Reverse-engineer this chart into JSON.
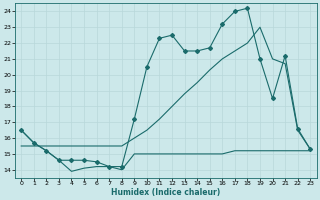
{
  "xlabel": "Humidex (Indice chaleur)",
  "bg_color": "#cce8ea",
  "line_color": "#1a6b6b",
  "grid_color": "#b8d8da",
  "xlim": [
    -0.5,
    23.5
  ],
  "ylim": [
    13.5,
    24.5
  ],
  "yticks": [
    14,
    15,
    16,
    17,
    18,
    19,
    20,
    21,
    22,
    23,
    24
  ],
  "xticks": [
    0,
    1,
    2,
    3,
    4,
    5,
    6,
    7,
    8,
    9,
    10,
    11,
    12,
    13,
    14,
    15,
    16,
    17,
    18,
    19,
    20,
    21,
    22,
    23
  ],
  "curve1_x": [
    0,
    1,
    2,
    3,
    4,
    5,
    6,
    7,
    8,
    9,
    10,
    11,
    12,
    13,
    14,
    15,
    16,
    17,
    18,
    19,
    20,
    21,
    22,
    23
  ],
  "curve1_y": [
    16.5,
    15.7,
    15.2,
    14.6,
    13.9,
    14.1,
    14.2,
    14.2,
    14.0,
    15.0,
    15.0,
    15.0,
    15.0,
    15.0,
    15.0,
    15.0,
    15.0,
    15.2,
    15.2,
    15.2,
    15.2,
    15.2,
    15.2,
    15.2
  ],
  "curve2_x": [
    0,
    1,
    2,
    3,
    4,
    5,
    6,
    7,
    8,
    9,
    10,
    11,
    12,
    13,
    14,
    15,
    16,
    17,
    18,
    19,
    20,
    21,
    22,
    23
  ],
  "curve2_y": [
    15.5,
    15.5,
    15.5,
    15.5,
    15.5,
    15.5,
    15.5,
    15.5,
    15.5,
    16.0,
    16.5,
    17.2,
    18.0,
    18.8,
    19.5,
    20.3,
    21.0,
    21.5,
    22.0,
    23.0,
    21.0,
    20.7,
    16.5,
    15.3
  ],
  "curve3_x": [
    0,
    1,
    2,
    3,
    4,
    5,
    6,
    7,
    8,
    9,
    10,
    11,
    12,
    13,
    14,
    15,
    16,
    17,
    18,
    19,
    20,
    21,
    22,
    23
  ],
  "curve3_y": [
    16.5,
    15.7,
    15.2,
    14.6,
    14.6,
    14.6,
    14.5,
    14.2,
    14.2,
    17.2,
    20.5,
    22.3,
    22.5,
    21.5,
    21.5,
    21.7,
    23.2,
    24.0,
    24.2,
    21.0,
    18.5,
    21.2,
    16.6,
    15.3
  ]
}
